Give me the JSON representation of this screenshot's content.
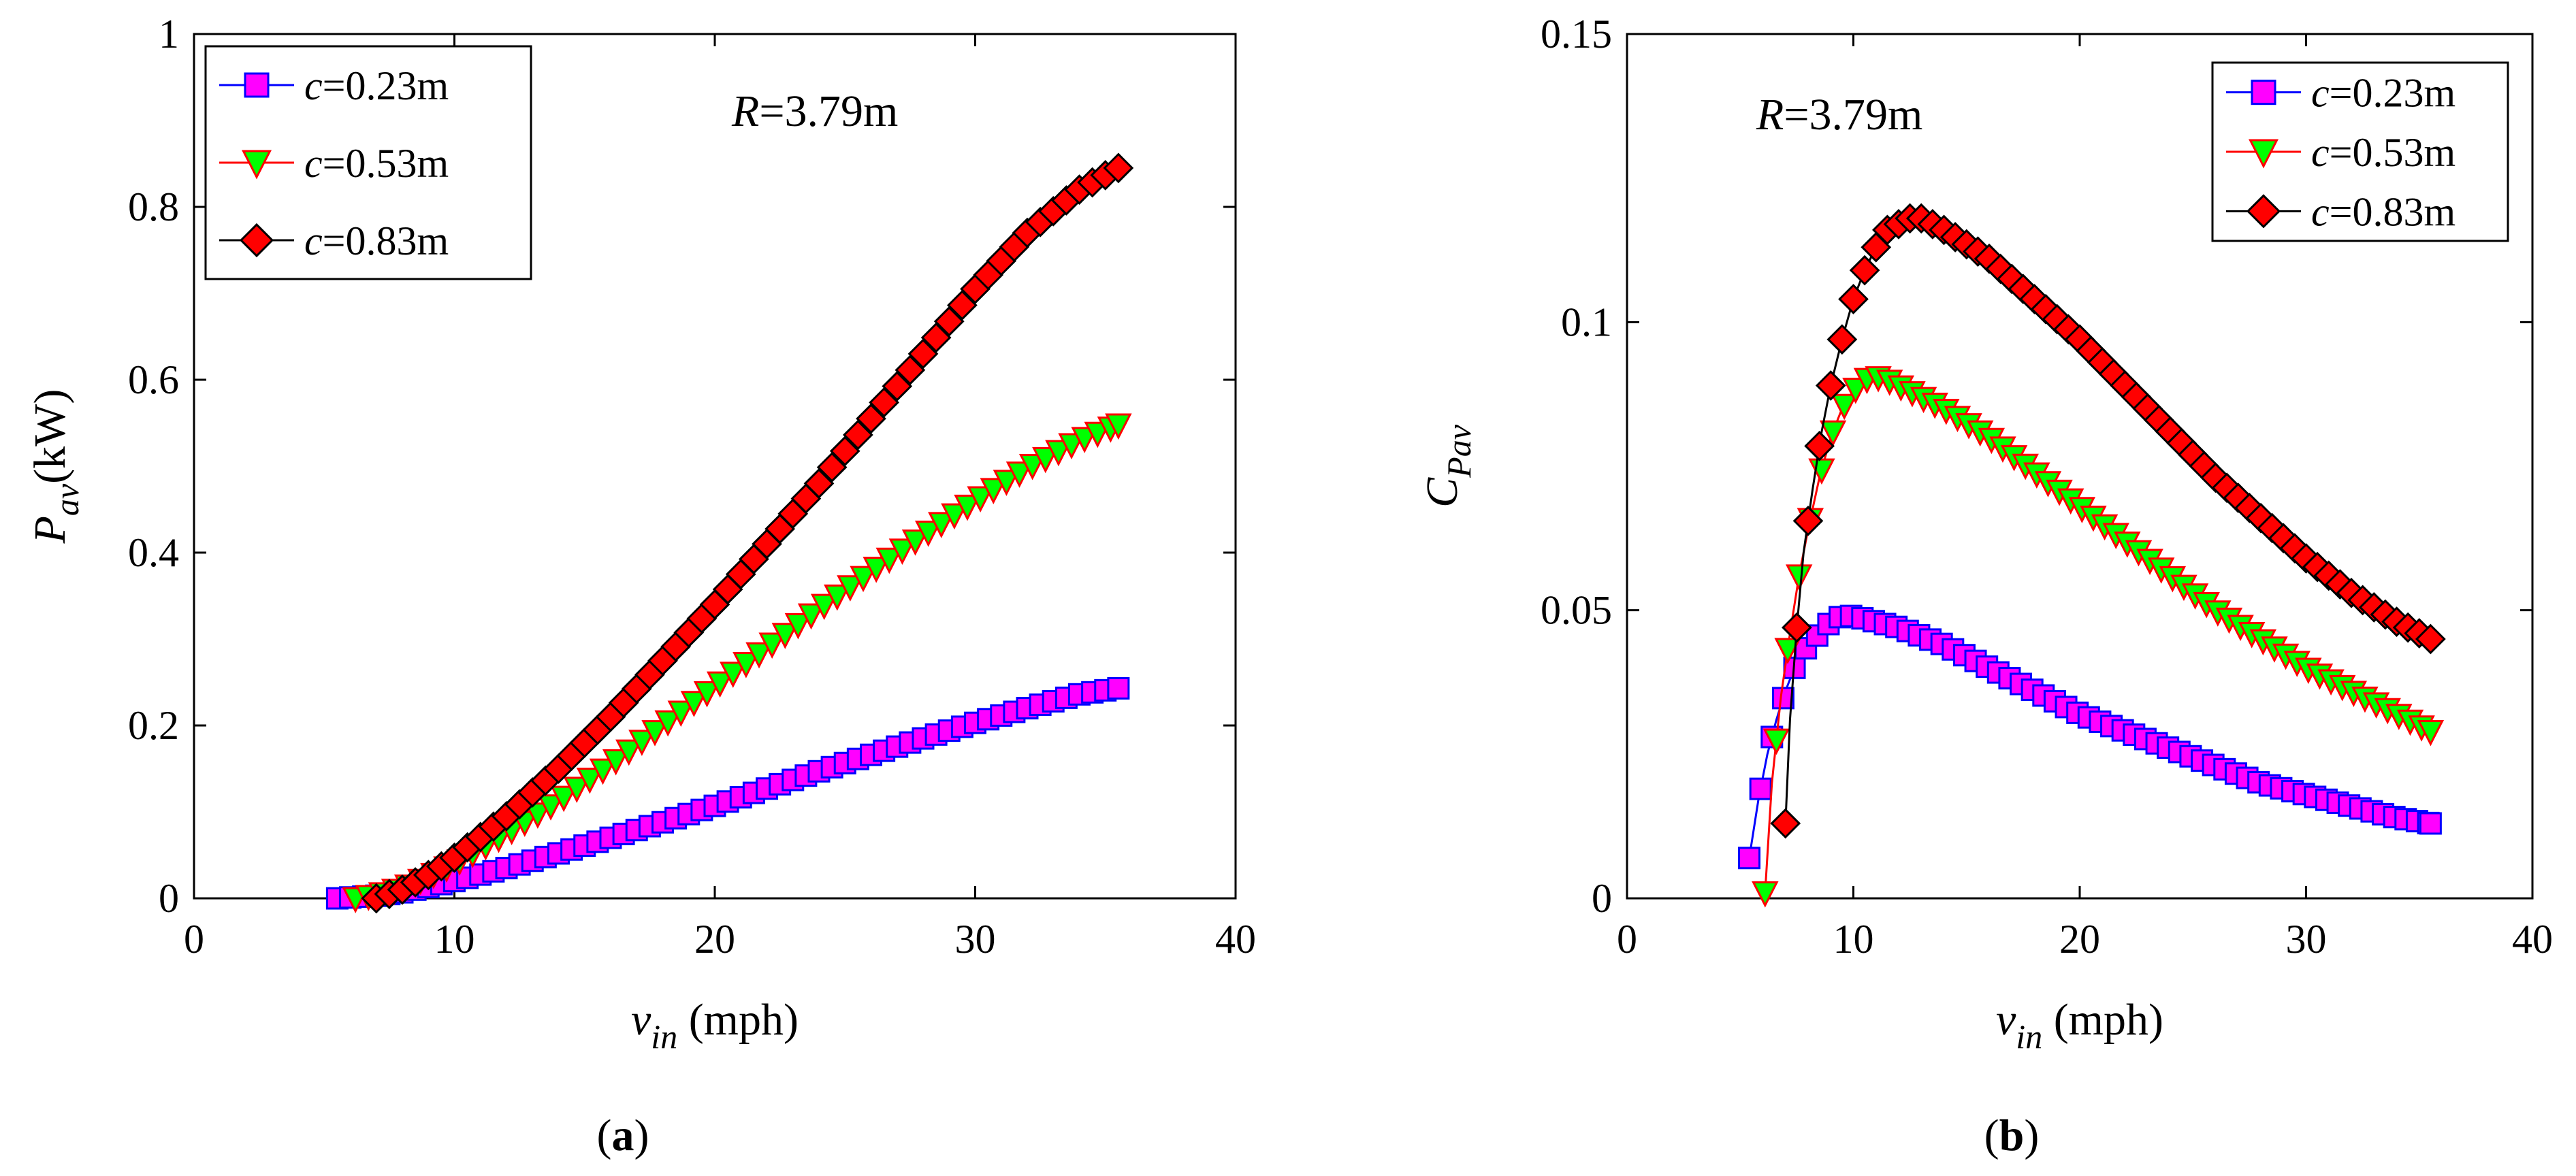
{
  "colors": {
    "square_face": "#ff00ff",
    "square_edge": "#0000ff",
    "square_line": "#0000ff",
    "triangle_face": "#00ff00",
    "triangle_edge": "#ff0000",
    "triangle_line": "#ff0000",
    "diamond_face": "#ff0000",
    "diamond_edge": "#000000",
    "diamond_line": "#000000"
  },
  "chart_data": [
    {
      "type": "line",
      "panel_label": "(a)",
      "panel_letter": "a",
      "annotation": {
        "var": "R",
        "text": "=3.79m"
      },
      "xlabel": {
        "var": "v",
        "sub": "in",
        "unit": " (mph)"
      },
      "ylabel": {
        "var": "P",
        "sub": "av",
        "unit": "(kW)"
      },
      "xlim": [
        0,
        40
      ],
      "ylim": [
        0,
        1
      ],
      "xticks": [
        0,
        10,
        20,
        30,
        40
      ],
      "xtick_labels": [
        "0",
        "10",
        "20",
        "30",
        "40"
      ],
      "yticks": [
        0,
        0.2,
        0.4,
        0.6,
        0.8,
        1
      ],
      "ytick_labels": [
        "0",
        "0.2",
        "0.4",
        "0.6",
        "0.8",
        "1"
      ],
      "legend_position": "top-left",
      "series": [
        {
          "name": "c=0.23m",
          "var": "c",
          "rest": "=0.23m",
          "marker": "square",
          "x": [
            5.5,
            6,
            7,
            8,
            9,
            10,
            12,
            14,
            16,
            18,
            20,
            22,
            24,
            26,
            28,
            30,
            32,
            34,
            35.5
          ],
          "values": [
            0.0,
            0.001,
            0.003,
            0.007,
            0.013,
            0.02,
            0.035,
            0.052,
            0.07,
            0.088,
            0.107,
            0.127,
            0.147,
            0.166,
            0.185,
            0.203,
            0.22,
            0.236,
            0.243
          ]
        },
        {
          "name": "c=0.53m",
          "var": "c",
          "rest": "=0.53m",
          "marker": "triangle",
          "x": [
            6.2,
            7,
            8,
            9,
            10,
            12,
            14,
            16,
            18,
            20,
            22,
            24,
            26,
            28,
            30,
            32,
            34,
            35.5
          ],
          "values": [
            0.0,
            0.004,
            0.012,
            0.025,
            0.04,
            0.075,
            0.113,
            0.155,
            0.2,
            0.245,
            0.29,
            0.335,
            0.378,
            0.42,
            0.46,
            0.498,
            0.53,
            0.548
          ]
        },
        {
          "name": "c=0.83m",
          "var": "c",
          "rest": "=0.83m",
          "marker": "diamond",
          "x": [
            7,
            8,
            9,
            10,
            12,
            14,
            16,
            18,
            20,
            22,
            24,
            26,
            28,
            30,
            32,
            34,
            35.5
          ],
          "values": [
            0.0,
            0.01,
            0.027,
            0.047,
            0.095,
            0.15,
            0.21,
            0.275,
            0.34,
            0.41,
            0.48,
            0.555,
            0.63,
            0.705,
            0.77,
            0.82,
            0.845
          ]
        }
      ]
    },
    {
      "type": "line",
      "panel_label": "(b)",
      "panel_letter": "b",
      "annotation": {
        "var": "R",
        "text": "=3.79m"
      },
      "xlabel": {
        "var": "v",
        "sub": "in",
        "unit": " (mph)"
      },
      "ylabel": {
        "var": "C",
        "sub": "Pav",
        "unit": ""
      },
      "xlim": [
        0,
        40
      ],
      "ylim": [
        0,
        0.15
      ],
      "xticks": [
        0,
        10,
        20,
        30,
        40
      ],
      "xtick_labels": [
        "0",
        "10",
        "20",
        "30",
        "40"
      ],
      "yticks": [
        0,
        0.05,
        0.1,
        0.15
      ],
      "ytick_labels": [
        "0",
        "0.05",
        "0.1",
        "0.15"
      ],
      "legend_position": "top-right",
      "series": [
        {
          "name": "c=0.23m",
          "var": "c",
          "rest": "=0.23m",
          "marker": "square",
          "x": [
            5.4,
            5.8,
            6.2,
            6.6,
            7,
            7.5,
            8,
            8.5,
            9,
            9.5,
            10,
            11,
            12,
            14,
            16,
            18,
            20,
            22,
            24,
            26,
            28,
            30,
            32,
            34,
            35.5
          ],
          "values": [
            0.007,
            0.017,
            0.025,
            0.031,
            0.036,
            0.041,
            0.044,
            0.046,
            0.048,
            0.049,
            0.049,
            0.048,
            0.047,
            0.044,
            0.04,
            0.036,
            0.032,
            0.029,
            0.026,
            0.023,
            0.02,
            0.018,
            0.016,
            0.014,
            0.013
          ]
        },
        {
          "name": "c=0.53m",
          "var": "c",
          "rest": "=0.53m",
          "marker": "triangle",
          "x": [
            6.1,
            6.4,
            6.8,
            7.2,
            7.6,
            8,
            8.5,
            9,
            9.5,
            10,
            10.5,
            11,
            11.5,
            12,
            14,
            16,
            18,
            20,
            22,
            24,
            26,
            28,
            30,
            32,
            34,
            35.5
          ],
          "values": [
            0.001,
            0.02,
            0.035,
            0.046,
            0.056,
            0.064,
            0.073,
            0.08,
            0.085,
            0.088,
            0.09,
            0.0905,
            0.09,
            0.089,
            0.085,
            0.08,
            0.074,
            0.068,
            0.062,
            0.056,
            0.05,
            0.045,
            0.04,
            0.036,
            0.032,
            0.029
          ]
        },
        {
          "name": "c=0.83m",
          "var": "c",
          "rest": "=0.83m",
          "marker": "diamond",
          "x": [
            7,
            7.2,
            7.5,
            7.8,
            8.2,
            8.6,
            9,
            9.5,
            10,
            10.5,
            11,
            11.5,
            12,
            12.5,
            13,
            14,
            16,
            18,
            20,
            22,
            24,
            26,
            28,
            30,
            32,
            34,
            35.5
          ],
          "values": [
            0.013,
            0.031,
            0.047,
            0.06,
            0.071,
            0.081,
            0.089,
            0.097,
            0.104,
            0.109,
            0.113,
            0.116,
            0.117,
            0.118,
            0.118,
            0.116,
            0.111,
            0.104,
            0.097,
            0.089,
            0.081,
            0.073,
            0.066,
            0.059,
            0.053,
            0.048,
            0.045
          ]
        }
      ]
    }
  ]
}
